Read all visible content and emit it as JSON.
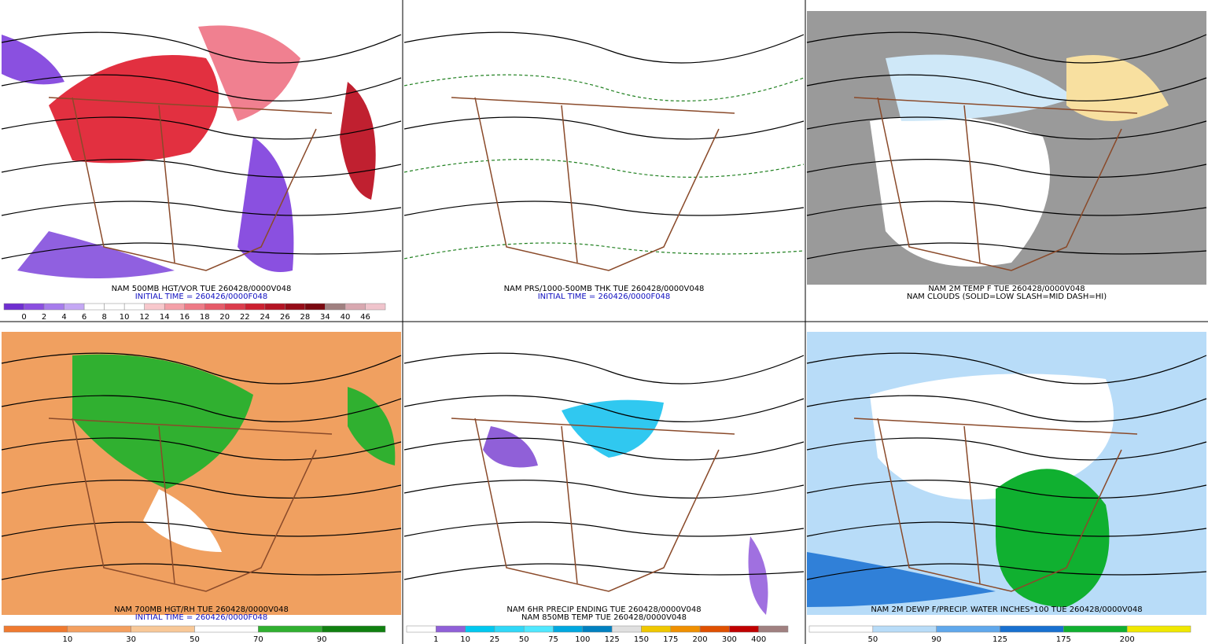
{
  "panels": [
    {
      "caption": [
        "NAM 500MB HGT/VOR TUE 260428/0000V048",
        "INITIAL TIME = 260426/0000F048"
      ],
      "caption_colors": [
        "#000000",
        "#1010c0"
      ],
      "colorbar": {
        "labels": [
          0,
          2,
          4,
          6,
          8,
          10,
          12,
          14,
          16,
          18,
          20,
          22,
          24,
          26,
          28,
          34,
          40,
          46
        ],
        "colors": [
          "#6f2fd0",
          "#8b4fe0",
          "#a67cec",
          "#c4a8f4",
          "#ffffff",
          "#ffffff",
          "#ffffff",
          "#f8c8cc",
          "#f4a0a8",
          "#ee7a86",
          "#e65a68",
          "#dc3c4c",
          "#cc2030",
          "#b41424",
          "#960c18",
          "#7a0810",
          "#a08080",
          "#d8a8b0",
          "#f0c4cc"
        ]
      }
    },
    {
      "caption": [
        "NAM PRS/1000-500MB THK TUE 260428/0000V048",
        "INITIAL TIME = 260426/0000F048"
      ],
      "caption_colors": [
        "#000000",
        "#1010c0"
      ]
    },
    {
      "caption": [
        "NAM 2M TEMP F TUE 260428/0000V048",
        "NAM CLOUDS (SOLID=LOW SLASH=MID DASH=HI)"
      ],
      "caption_colors": [
        "#000000",
        "#000000"
      ]
    },
    {
      "caption": [
        "NAM 700MB HGT/RH TUE 260428/0000V048",
        "INITIAL TIME = 260426/0000F048"
      ],
      "caption_colors": [
        "#000000",
        "#1010c0"
      ],
      "colorbar": {
        "labels": [
          10,
          30,
          50,
          70,
          90
        ],
        "colors": [
          "#f07a30",
          "#f4a060",
          "#f8c898",
          "#ffffff",
          "#30b030",
          "#108010"
        ]
      }
    },
    {
      "caption": [
        "NAM 6HR PRECIP ENDING TUE 260428/0000V048",
        "NAM 850MB TEMP TUE 260428/0000V048"
      ],
      "caption_colors": [
        "#000000",
        "#000000"
      ],
      "colorbar": {
        "labels": [
          1,
          10,
          25,
          50,
          75,
          100,
          125,
          150,
          175,
          200,
          300,
          400
        ],
        "colors": [
          "#ffffff",
          "#9060d8",
          "#00c8f0",
          "#30d8f8",
          "#50e8ff",
          "#00a8e0",
          "#0080c0",
          "#e0e0e0",
          "#f0c800",
          "#f09000",
          "#e05000",
          "#c00000",
          "#a08080"
        ]
      }
    },
    {
      "caption": [
        "NAM 2M DEWP F/PRECIP. WATER INCHES*100 TUE 260428/0000V048"
      ],
      "caption_colors": [
        "#000000"
      ],
      "colorbar": {
        "labels": [
          50,
          90,
          125,
          175,
          200
        ],
        "colors": [
          "#ffffff",
          "#b8dcf8",
          "#60a8ec",
          "#1870d0",
          "#10b030",
          "#f0e800"
        ]
      }
    }
  ]
}
